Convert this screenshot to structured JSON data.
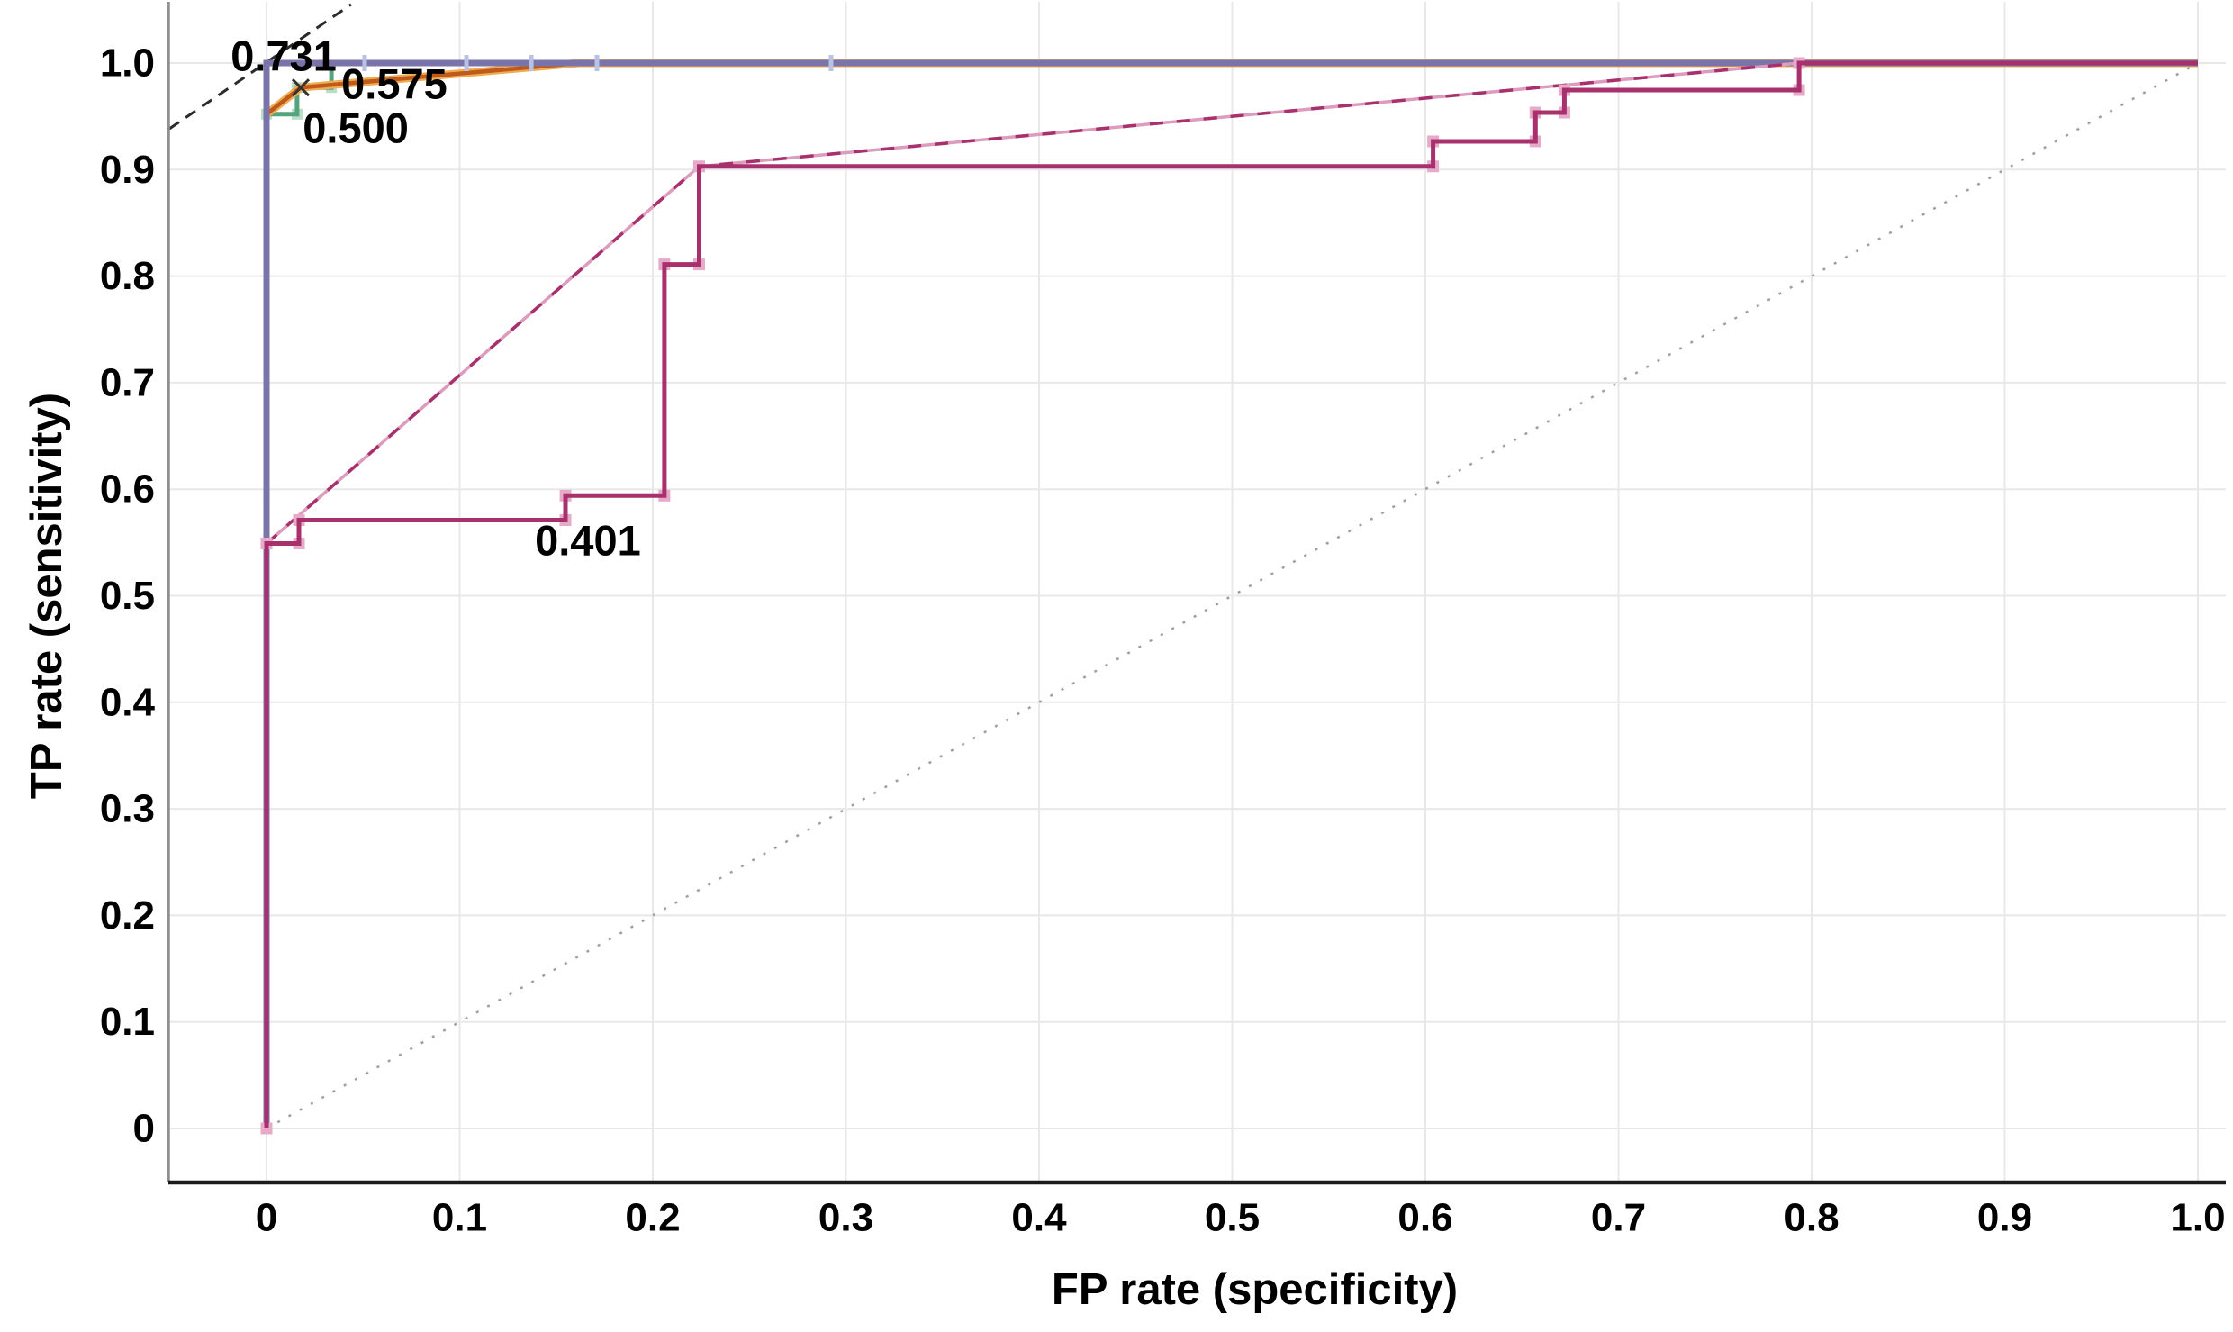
{
  "figure": {
    "kind": "roc-curve-figure",
    "background_color": "#ffffff"
  },
  "chart_data": {
    "type": "line",
    "title": "",
    "xlabel": "FP rate (specificity)",
    "ylabel": "TP rate (sensitivity)",
    "xlim": [
      0,
      1
    ],
    "ylim": [
      0,
      1
    ],
    "grid": true,
    "grid_color": "#e8e8e8",
    "axis_color_left": "#8f8f8f",
    "axis_color_bottom": "#1b1b1b",
    "xticks": [
      "0",
      "0.1",
      "0.2",
      "0.3",
      "0.4",
      "0.5",
      "0.6",
      "0.7",
      "0.8",
      "0.9",
      "1.0"
    ],
    "yticks": [
      "0",
      "0.1",
      "0.2",
      "0.3",
      "0.4",
      "0.5",
      "0.6",
      "0.7",
      "0.8",
      "0.9",
      "1.0"
    ],
    "reference_lines": [
      {
        "name": "chance-diagonal",
        "style": "dotted",
        "color": "#a0a0a0",
        "points": [
          [
            0,
            0
          ],
          [
            1,
            1
          ]
        ]
      },
      {
        "name": "tangent-dashed-line",
        "style": "dashed",
        "color": "#2b2b2b",
        "points": [
          [
            -0.0503,
            0.9383
          ],
          [
            0.0438,
            1.055
          ]
        ]
      }
    ],
    "series": [
      {
        "name": "green-roc",
        "color": "#55a47e",
        "width": 5,
        "points": [
          [
            0,
            0.952
          ],
          [
            0.0158,
            0.952
          ],
          [
            0.0158,
            0.977
          ],
          [
            0.0336,
            0.977
          ],
          [
            0.0336,
            1.0
          ],
          [
            0.2,
            1.0
          ]
        ],
        "markers": {
          "z": "under",
          "type": "square",
          "color": "#b9ddc6",
          "size": 12,
          "at": [
            [
              0,
              0.952
            ],
            [
              0.0158,
              0.952
            ],
            [
              0.0158,
              0.977
            ],
            [
              0.0336,
              0.977
            ]
          ]
        }
      },
      {
        "name": "orange-roc",
        "color": "#c05a1a",
        "halo": "#f0ac52",
        "width": 4.5,
        "points": [
          [
            0,
            0.952
          ],
          [
            0.0177,
            0.977
          ],
          [
            0.1617,
            1.0
          ],
          [
            1,
            1
          ]
        ]
      },
      {
        "name": "blue-roc",
        "color": "#7a74ab",
        "width": 7,
        "points": [
          [
            0,
            0
          ],
          [
            0,
            1
          ],
          [
            1,
            1
          ]
        ],
        "markers": {
          "z": "over",
          "type": "vtick",
          "color": "#b9c2e2",
          "size": 18,
          "at": [
            [
              0.0508,
              1
            ],
            [
              0.1035,
              1
            ],
            [
              0.1371,
              1
            ],
            [
              0.1711,
              1
            ],
            [
              0.2923,
              1
            ]
          ]
        }
      },
      {
        "name": "convex-hull-light",
        "color": "#dd9cbd",
        "width": 3.5,
        "points": [
          [
            0,
            0.549
          ],
          [
            0.224,
            0.903
          ],
          [
            0.7935,
            1.0
          ],
          [
            1,
            1
          ]
        ]
      },
      {
        "name": "convex-hull-dashed",
        "color": "#a8306c",
        "width": 3.5,
        "dash": "15 15",
        "points": [
          [
            0,
            0.549
          ],
          [
            0.224,
            0.903
          ],
          [
            0.7935,
            1.0
          ],
          [
            1,
            1
          ]
        ]
      },
      {
        "name": "crimson-roc",
        "color": "#a8306c",
        "width": 5,
        "points": [
          [
            0,
            0
          ],
          [
            0,
            0.549
          ],
          [
            0.0168,
            0.549
          ],
          [
            0.0168,
            0.571
          ],
          [
            0.1548,
            0.571
          ],
          [
            0.1548,
            0.594
          ],
          [
            0.206,
            0.594
          ],
          [
            0.206,
            0.811
          ],
          [
            0.224,
            0.811
          ],
          [
            0.224,
            0.903
          ],
          [
            0.604,
            0.903
          ],
          [
            0.604,
            0.9265
          ],
          [
            0.657,
            0.9265
          ],
          [
            0.657,
            0.9535
          ],
          [
            0.672,
            0.9535
          ],
          [
            0.672,
            0.9746
          ],
          [
            0.7935,
            0.9746
          ],
          [
            0.7935,
            1.0
          ],
          [
            1,
            1
          ]
        ],
        "markers": {
          "z": "under",
          "type": "square",
          "color": "#e7abca",
          "size": 13,
          "at": [
            [
              0,
              0
            ],
            [
              0,
              0.549
            ],
            [
              0.0168,
              0.549
            ],
            [
              0.0168,
              0.571
            ],
            [
              0.1548,
              0.571
            ],
            [
              0.1548,
              0.594
            ],
            [
              0.206,
              0.594
            ],
            [
              0.206,
              0.811
            ],
            [
              0.224,
              0.811
            ],
            [
              0.224,
              0.903
            ],
            [
              0.604,
              0.903
            ],
            [
              0.604,
              0.9265
            ],
            [
              0.657,
              0.9265
            ],
            [
              0.657,
              0.9535
            ],
            [
              0.672,
              0.9535
            ],
            [
              0.672,
              0.9746
            ],
            [
              0.7935,
              0.9746
            ],
            [
              0.7935,
              1.0
            ]
          ]
        }
      }
    ],
    "annotations": [
      {
        "text": "0.731",
        "x": 0.0089,
        "y": 1.0068
      },
      {
        "text": "0.575",
        "x": 0.0662,
        "y": 0.9806
      },
      {
        "text": "0.500",
        "x": 0.0462,
        "y": 0.9392
      },
      {
        "text": "0.401",
        "x": 0.1664,
        "y": 0.552
      }
    ],
    "point_markers_x": [
      {
        "x": 0.0177,
        "y": 0.977
      }
    ]
  }
}
